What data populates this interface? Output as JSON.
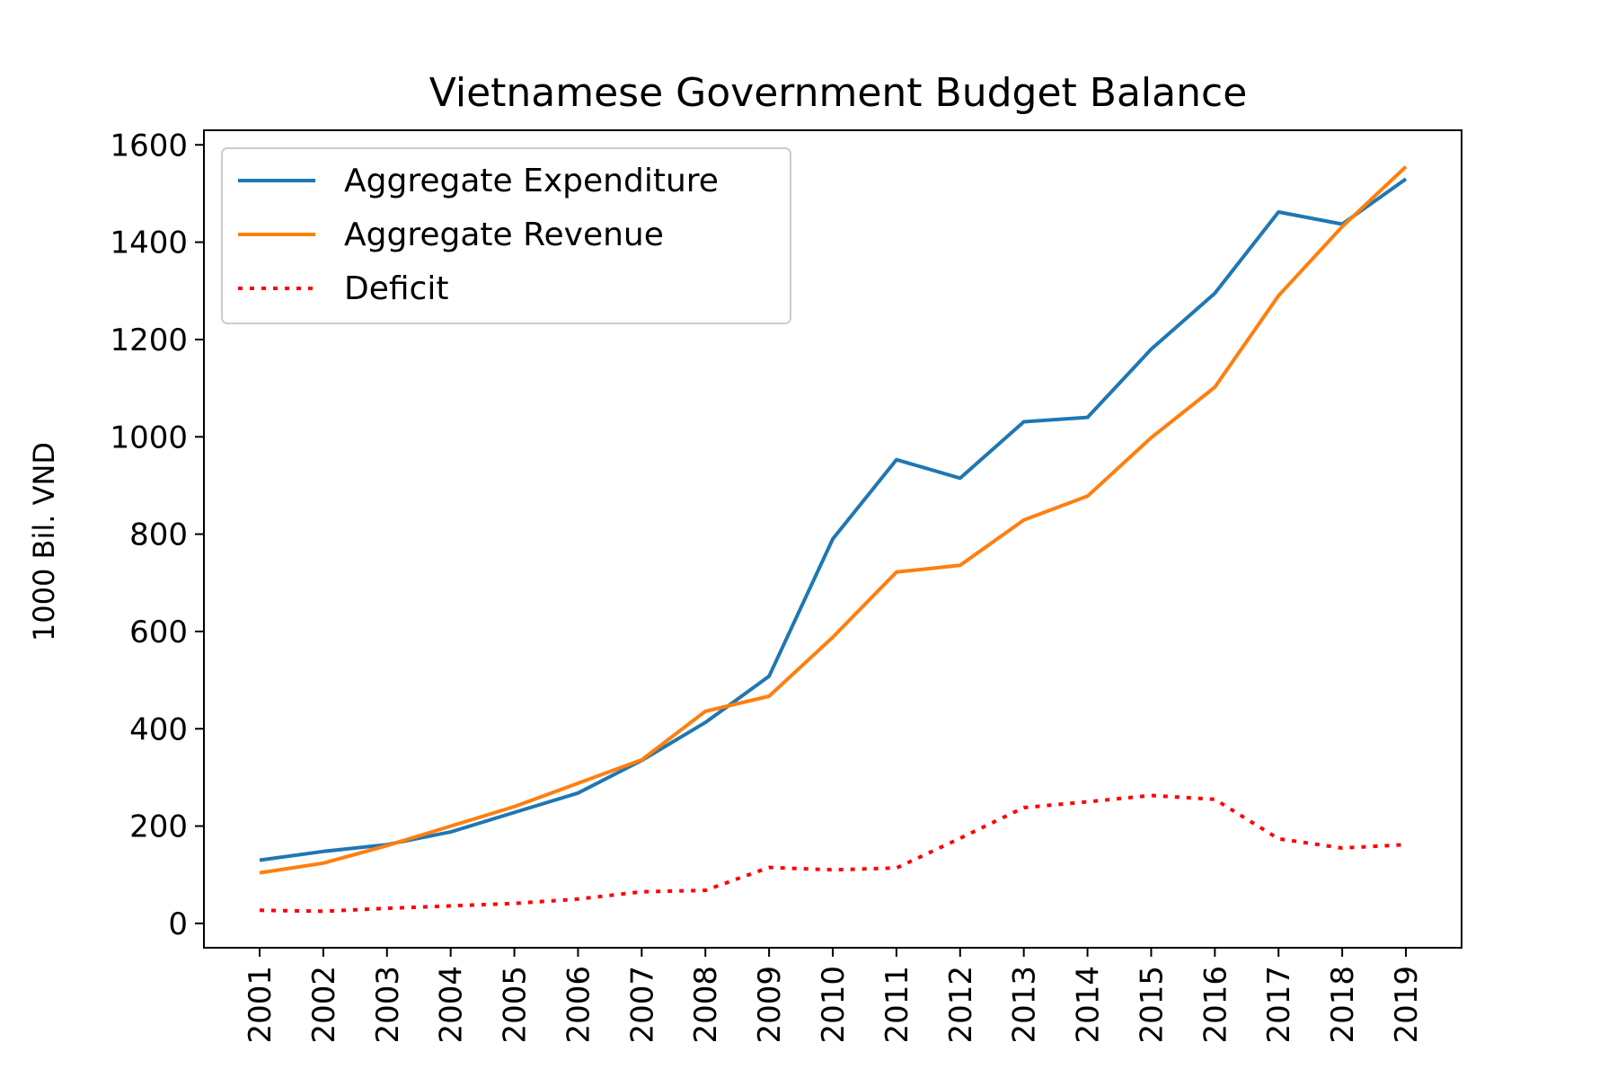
{
  "chart_data": {
    "type": "line",
    "title": "Vietnamese Government Budget Balance",
    "xlabel": "",
    "ylabel": "1000 Bil. VND",
    "ylim": [
      -50,
      1630
    ],
    "yticks": [
      0,
      200,
      400,
      600,
      800,
      1000,
      1200,
      1400,
      1600
    ],
    "categories": [
      "2001",
      "2002",
      "2003",
      "2004",
      "2005",
      "2006",
      "2007",
      "2008",
      "2009",
      "2010",
      "2011",
      "2012",
      "2013",
      "2014",
      "2015",
      "2016",
      "2017",
      "2018",
      "2019"
    ],
    "legend_position": "upper-left",
    "grid": false,
    "series": [
      {
        "name": "Aggregate Expenditure",
        "color": "#1f77b4",
        "style": "solid",
        "values": [
          130,
          148,
          162,
          188,
          228,
          268,
          335,
          413,
          508,
          790,
          953,
          915,
          1031,
          1040,
          1180,
          1295,
          1462,
          1437,
          1530
        ]
      },
      {
        "name": "Aggregate Revenue",
        "color": "#ff7f0e",
        "style": "solid",
        "values": [
          104,
          124,
          160,
          200,
          240,
          288,
          336,
          436,
          467,
          588,
          722,
          736,
          829,
          878,
          998,
          1102,
          1290,
          1432,
          1555
        ]
      },
      {
        "name": "Deficit",
        "color": "#ff0000",
        "style": "dotted",
        "values": [
          27,
          25,
          31,
          36,
          41,
          50,
          65,
          68,
          115,
          110,
          114,
          175,
          238,
          250,
          263,
          255,
          174,
          155,
          162
        ]
      }
    ]
  }
}
